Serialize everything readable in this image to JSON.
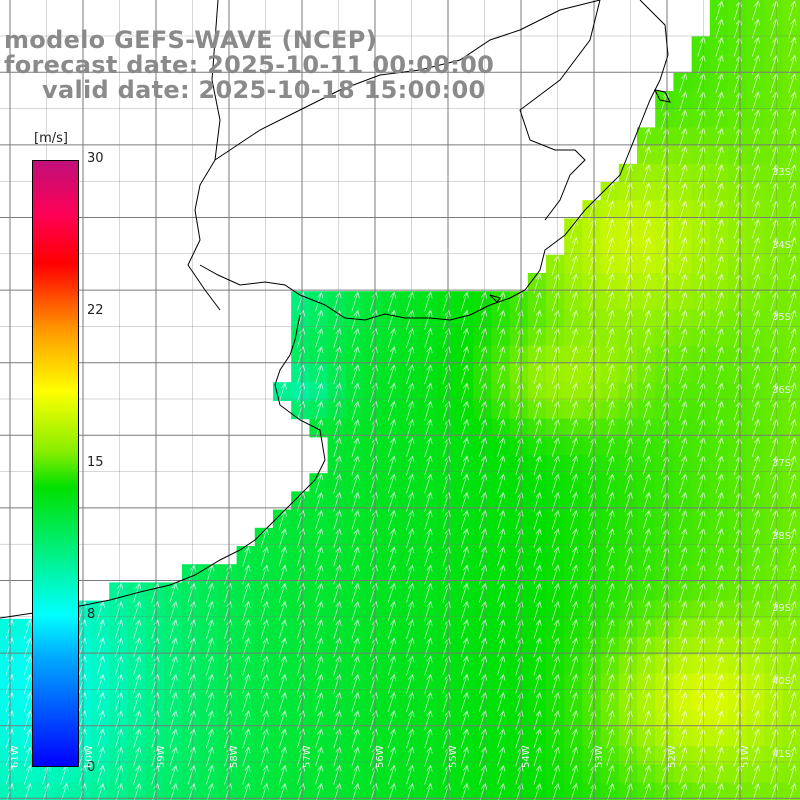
{
  "title": {
    "line1": "modelo GEFS-WAVE (NCEP)",
    "line2": "forecast date: 2025-10-11 00:00:00",
    "line3": "valid date: 2025-10-18 15:00:00"
  },
  "colorbar": {
    "unit": "[m/s]",
    "ticks": [
      {
        "label": "30",
        "value": 30
      },
      {
        "label": "22",
        "value": 22
      },
      {
        "label": "15",
        "value": 15
      },
      {
        "label": "8",
        "value": 8
      },
      {
        "label": "0",
        "value": 0
      }
    ],
    "range": [
      0,
      30
    ]
  },
  "axes": {
    "lon_labels": [
      "61W",
      "60W",
      "59W",
      "58W",
      "57W",
      "56W",
      "55W",
      "54W",
      "53W",
      "52W",
      "51W"
    ],
    "lat_labels": [
      "33S",
      "34S",
      "35S",
      "36S",
      "37S",
      "38S",
      "39S",
      "40S",
      "41S"
    ]
  },
  "colors": {
    "title": "#8a8a8a",
    "land": "#ffffff",
    "grid": "#7a7a7a",
    "coast": "#000000",
    "arrows": "#ffffff"
  },
  "field": {
    "variable": "wind speed",
    "arrow_direction": "north (from south)"
  }
}
